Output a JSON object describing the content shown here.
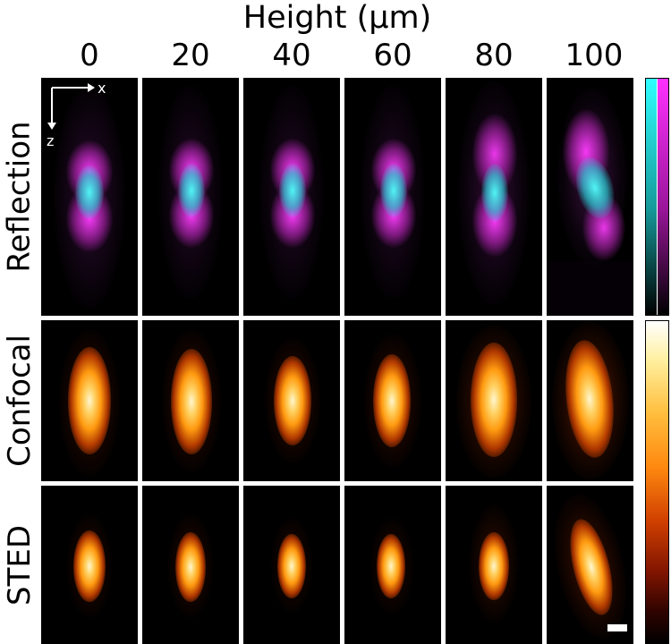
{
  "title": "Height (μm)",
  "columns": [
    "0",
    "20",
    "40",
    "60",
    "80",
    "100"
  ],
  "rows": [
    "Reflection",
    "Confocal",
    "STED"
  ],
  "axes": {
    "x_label": "x",
    "z_label": "z"
  },
  "colors": {
    "reflection_magenta": "#ff30ff",
    "reflection_cyan": "#30e0e0",
    "psf_core": "#fff6d0",
    "psf_mid": "#ff9a10",
    "psf_outer": "#7a1800",
    "background": "#000000"
  },
  "colorbars": {
    "reflection": [
      "cyan",
      "magenta"
    ],
    "intensity": "black-red-orange-yellow-white"
  }
}
